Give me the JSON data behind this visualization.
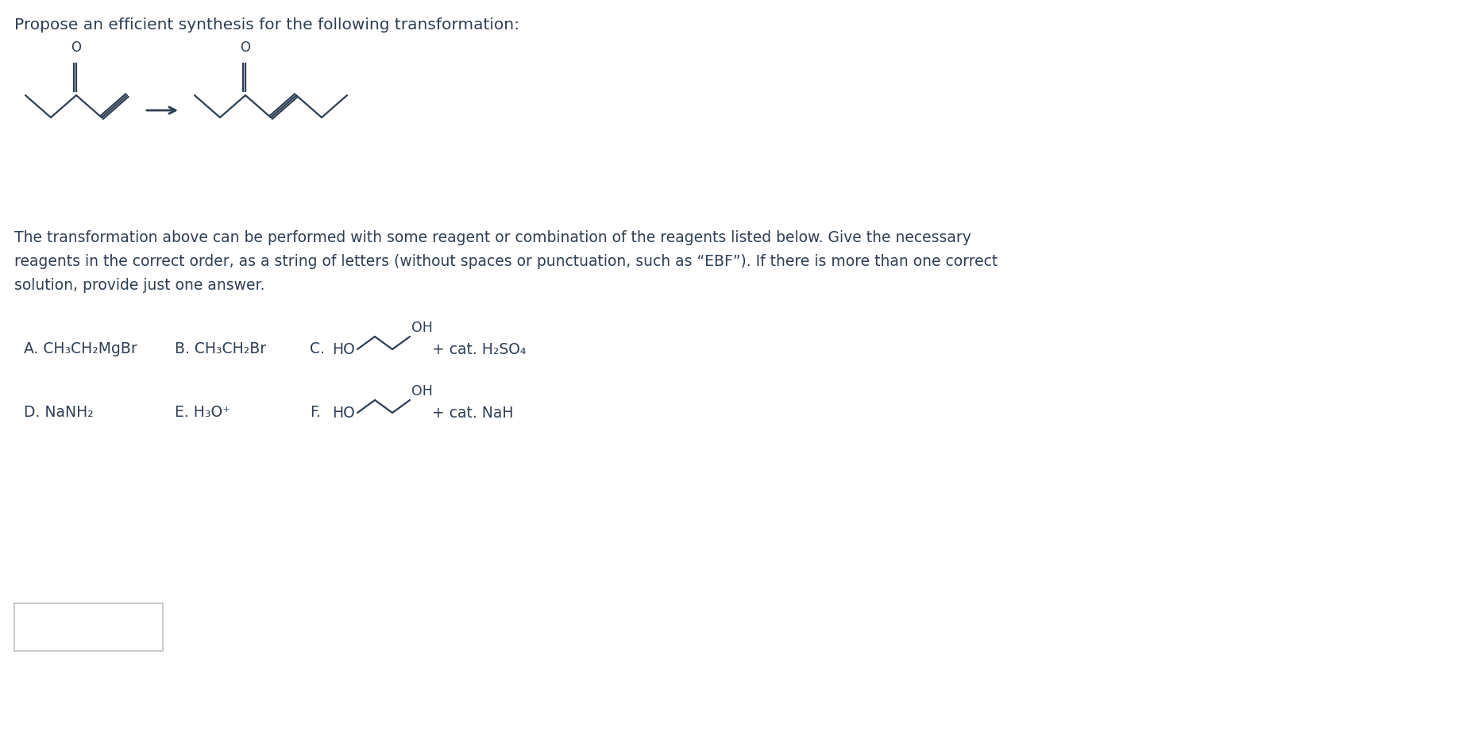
{
  "background_color": "#ffffff",
  "text_color": "#2d3f54",
  "title_line": "Propose an efficient synthesis for the following transformation:",
  "description_lines": [
    "The transformation above can be performed with some reagent or combination of the reagents listed below. Give the necessary",
    "reagents in the correct order, as a string of letters (without spaces or punctuation, such as “EBF”). If there is more than one correct",
    "solution, provide just one answer."
  ],
  "font_size_title": 14.5,
  "font_size_text": 13.5,
  "font_size_reagent": 13.5
}
